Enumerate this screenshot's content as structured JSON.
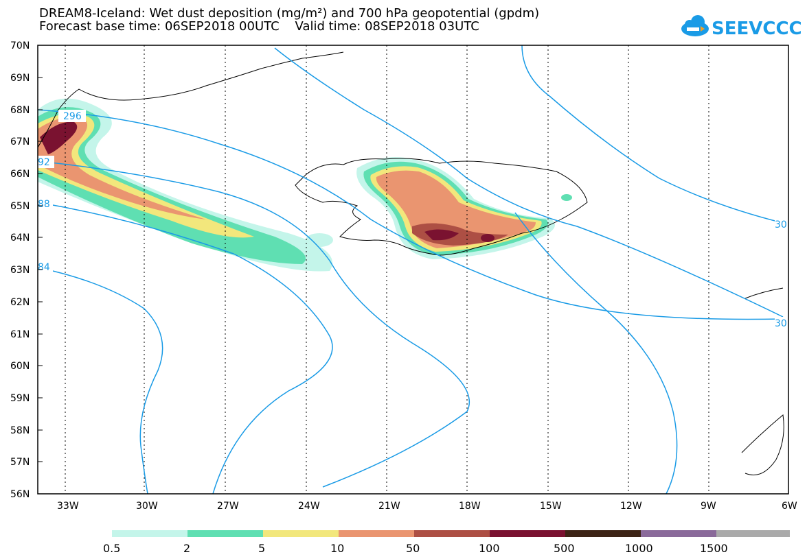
{
  "title": {
    "line1": "DREAM8-Iceland: Wet dust deposition (mg/m²) and 700 hPa geopotential (gpdm)",
    "line2": "Forecast base time: 06SEP2018 00UTC    Valid time: 08SEP2018 03UTC"
  },
  "logo": {
    "text": "SEEVCCC",
    "icon": "cloud-icon",
    "color": "#1a9be6"
  },
  "axes": {
    "lat_labels": [
      "70N",
      "69N",
      "68N",
      "67N",
      "66N",
      "65N",
      "64N",
      "63N",
      "62N",
      "61N",
      "60N",
      "59N",
      "58N",
      "57N",
      "56N"
    ],
    "lon_labels": [
      "33W",
      "30W",
      "27W",
      "24W",
      "21W",
      "18W",
      "15W",
      "12W",
      "9W",
      "6W"
    ]
  },
  "contour_labels": [
    "296",
    "92",
    "88",
    "84",
    "30",
    "30"
  ],
  "legend": {
    "colors": [
      "#c4f5ea",
      "#5fdfb2",
      "#f2e77c",
      "#ea9570",
      "#ad4f44",
      "#7a1230",
      "#3d2416",
      "#8a6a9a",
      "#aaaaaa"
    ],
    "labels": [
      "0.5",
      "2",
      "5",
      "10",
      "50",
      "100",
      "500",
      "1000",
      "1500"
    ]
  },
  "colors": {
    "contour": "#1a9be6",
    "coast": "#000000"
  }
}
